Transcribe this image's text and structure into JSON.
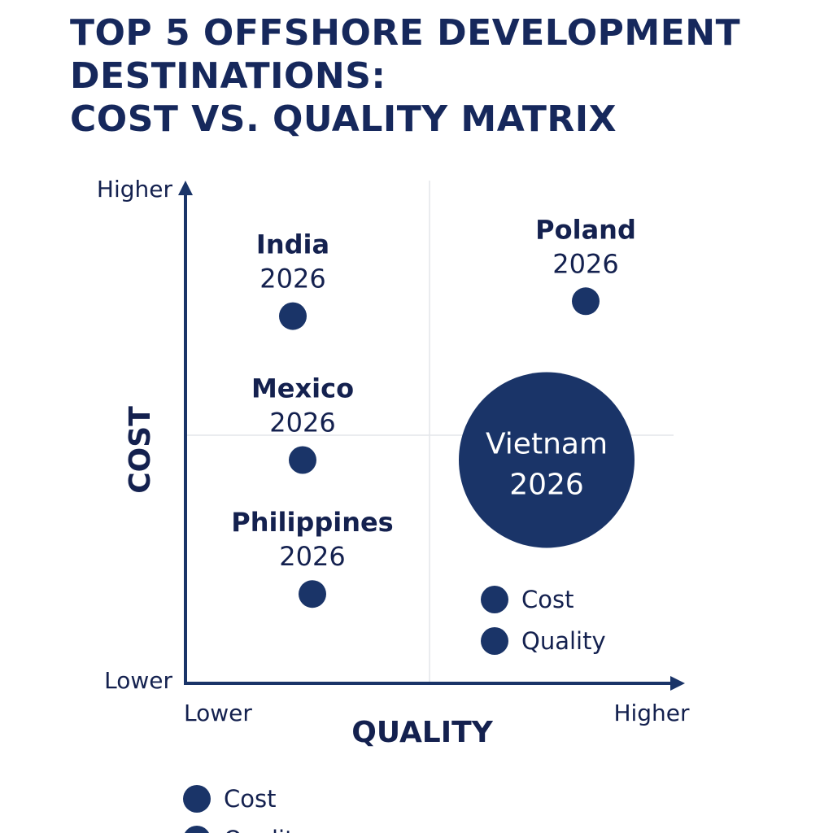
{
  "chart_data": {
    "type": "scatter",
    "title_lines": [
      "TOP 5 OFFSHORE DEVELOPMENT",
      "DESTINATIONS:",
      "COST VS. QUALITY MATRIX"
    ],
    "xlabel": "QUALITY",
    "ylabel": "COST",
    "x_tick_labels": [
      "Lower",
      "Higher"
    ],
    "y_tick_labels": [
      "Lower",
      "Higher"
    ],
    "xlim": [
      0,
      100
    ],
    "ylim": [
      0,
      100
    ],
    "quadrant_lines": {
      "x": 50,
      "y": 50
    },
    "grid": false,
    "points": [
      {
        "name": "India",
        "year": "2026",
        "x": 22,
        "y": 74,
        "size": "small"
      },
      {
        "name": "Poland",
        "year": "2026",
        "x": 82,
        "y": 77,
        "size": "small"
      },
      {
        "name": "Mexico",
        "year": "2026",
        "x": 24,
        "y": 45,
        "size": "small"
      },
      {
        "name": "Philippines",
        "year": "2026",
        "x": 26,
        "y": 18,
        "size": "small"
      },
      {
        "name": "Vietnam",
        "year": "2026",
        "x": 74,
        "y": 45,
        "size": "large"
      }
    ],
    "legend_inner": [
      "Cost",
      "Quality"
    ],
    "legend_bottom": [
      "Cost",
      "Quality"
    ],
    "colors": {
      "marker": "#1a3468",
      "text": "#14214f",
      "axis": "#1a3468",
      "quadrant_line": "#e4e6ea"
    }
  }
}
